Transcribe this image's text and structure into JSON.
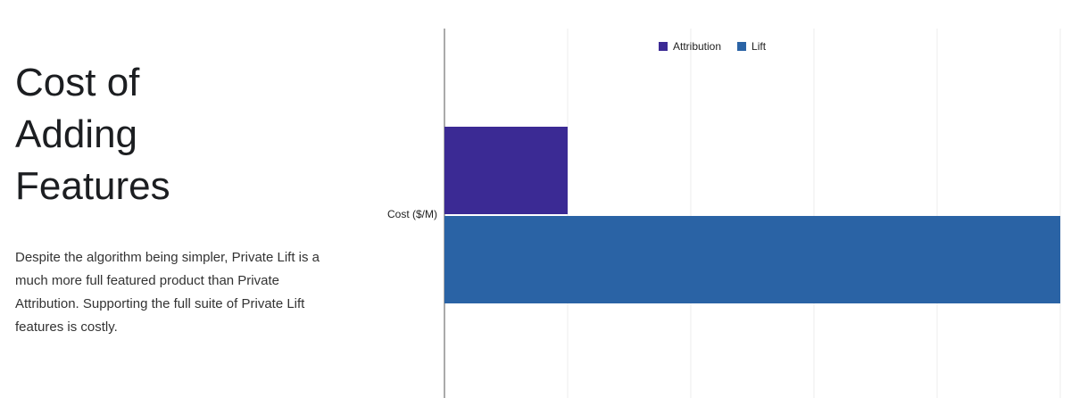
{
  "slide": {
    "title": "Cost of Adding Features",
    "body": "Despite the algorithm being simpler, Private Lift is a much more full featured product than Private Attribution. Supporting the full suite of Private Lift features is costly."
  },
  "chart_data": {
    "type": "hbar",
    "categories": [
      "Cost ($/M)"
    ],
    "series": [
      {
        "name": "Attribution",
        "color": "#3b2a94",
        "values": [
          1
        ]
      },
      {
        "name": "Lift",
        "color": "#2a63a5",
        "values": [
          5
        ]
      }
    ],
    "xlim": [
      0,
      5
    ],
    "xticks": [
      0,
      1,
      2,
      3,
      4,
      5
    ],
    "grid": true,
    "legend": "top"
  }
}
